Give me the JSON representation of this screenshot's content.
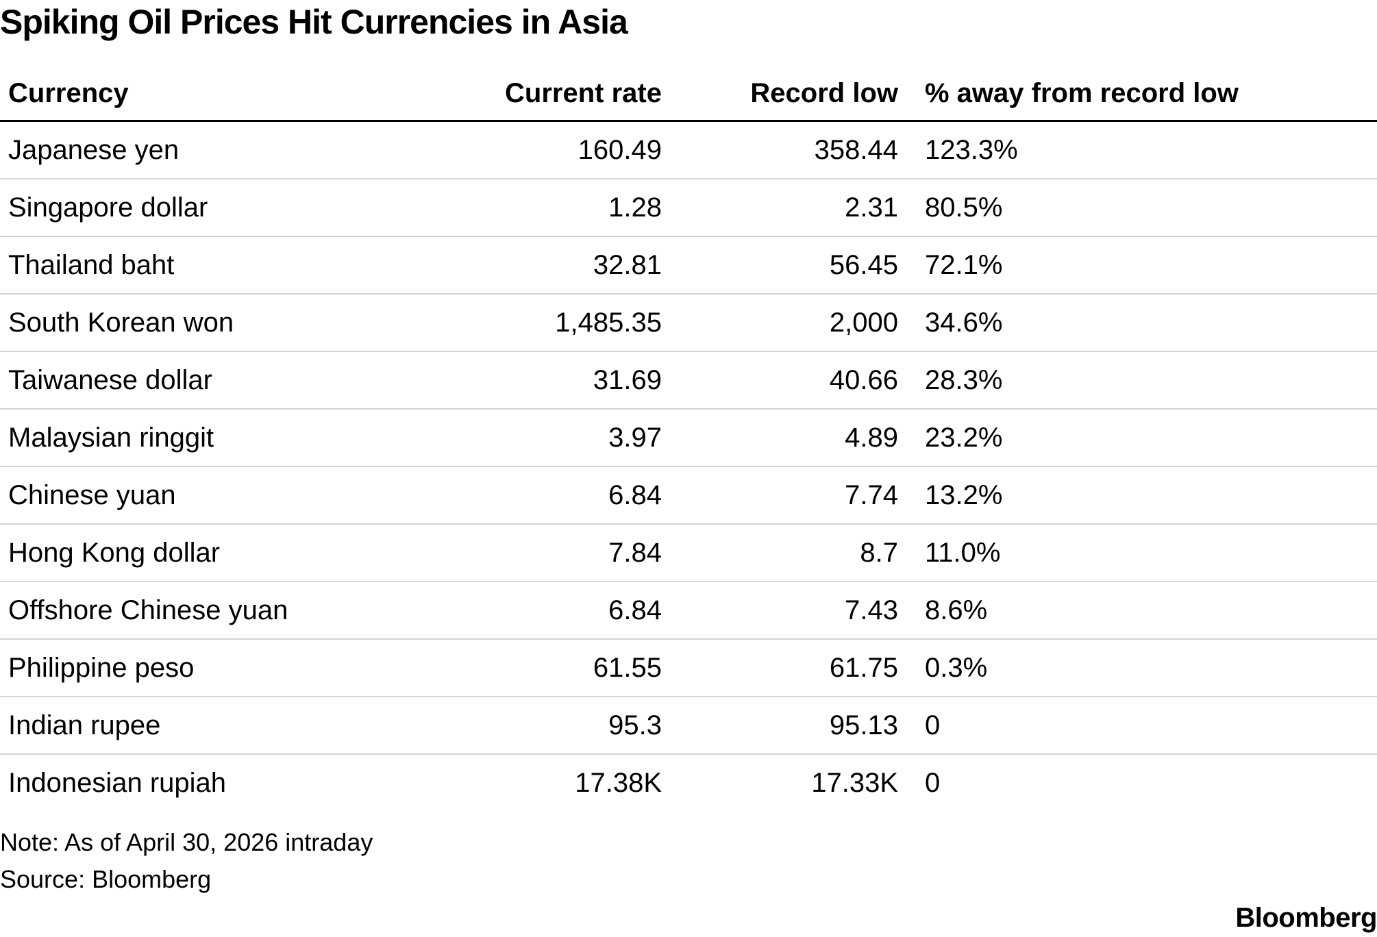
{
  "title": "Spiking Oil Prices Hit Currencies in Asia",
  "chart_data": {
    "type": "table",
    "title": "Spiking Oil Prices Hit Currencies in Asia",
    "columns": [
      "Currency",
      "Current rate",
      "Record low",
      "% away from record low"
    ],
    "rows": [
      {
        "currency": "Japanese yen",
        "current": "160.49",
        "record_low": "358.44",
        "pct": "123.3%"
      },
      {
        "currency": "Singapore dollar",
        "current": "1.28",
        "record_low": "2.31",
        "pct": "80.5%"
      },
      {
        "currency": "Thailand baht",
        "current": "32.81",
        "record_low": "56.45",
        "pct": "72.1%"
      },
      {
        "currency": "South Korean won",
        "current": "1,485.35",
        "record_low": "2,000",
        "pct": "34.6%"
      },
      {
        "currency": "Taiwanese dollar",
        "current": "31.69",
        "record_low": "40.66",
        "pct": "28.3%"
      },
      {
        "currency": "Malaysian ringgit",
        "current": "3.97",
        "record_low": "4.89",
        "pct": "23.2%"
      },
      {
        "currency": "Chinese yuan",
        "current": "6.84",
        "record_low": "7.74",
        "pct": "13.2%"
      },
      {
        "currency": "Hong Kong dollar",
        "current": "7.84",
        "record_low": "8.7",
        "pct": "11.0%"
      },
      {
        "currency": "Offshore Chinese yuan",
        "current": "6.84",
        "record_low": "7.43",
        "pct": "8.6%"
      },
      {
        "currency": "Philippine peso",
        "current": "61.55",
        "record_low": "61.75",
        "pct": "0.3%"
      },
      {
        "currency": "Indian rupee",
        "current": "95.3",
        "record_low": "95.13",
        "pct": "0"
      },
      {
        "currency": "Indonesian rupiah",
        "current": "17.38K",
        "record_low": "17.33K",
        "pct": "0"
      }
    ]
  },
  "footer": {
    "note": "Note: As of April 30, 2026 intraday",
    "source": "Source: Bloomberg",
    "brand": "Bloomberg"
  }
}
